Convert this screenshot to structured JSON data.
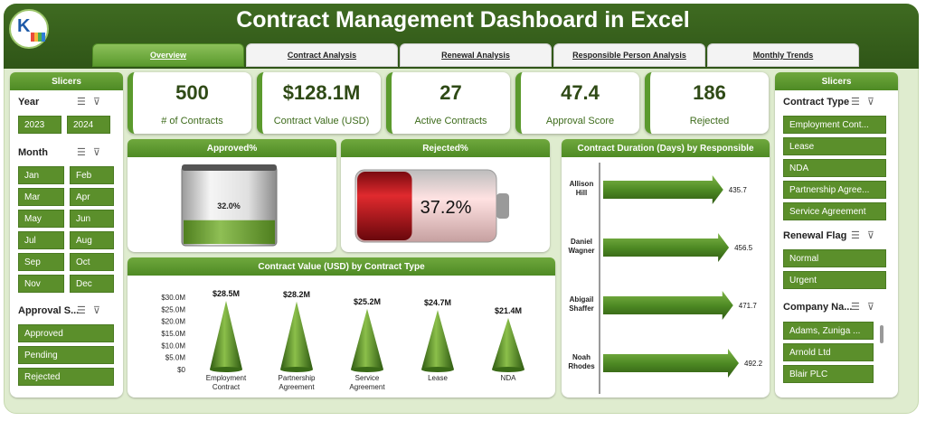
{
  "app": {
    "title": "Contract Management Dashboard in Excel"
  },
  "tabs": [
    {
      "label": "Overview",
      "active": true
    },
    {
      "label": "Contract Analysis"
    },
    {
      "label": "Renewal Analysis"
    },
    {
      "label": "Responsible Person Analysis"
    },
    {
      "label": "Monthly Trends"
    }
  ],
  "left_slicers": {
    "header": "Slicers",
    "year": {
      "title": "Year",
      "options": [
        "2023",
        "2024"
      ]
    },
    "month": {
      "title": "Month",
      "options": [
        "Jan",
        "Feb",
        "Mar",
        "Apr",
        "May",
        "Jun",
        "Jul",
        "Aug",
        "Sep",
        "Oct",
        "Nov",
        "Dec"
      ]
    },
    "approval": {
      "title": "Approval S...",
      "options": [
        "Approved",
        "Pending",
        "Rejected"
      ]
    }
  },
  "right_slicers": {
    "header": "Slicers",
    "contract_type": {
      "title": "Contract Type",
      "options": [
        "Employment Cont...",
        "Lease",
        "NDA",
        "Partnership Agree...",
        "Service Agreement"
      ]
    },
    "renewal_flag": {
      "title": "Renewal Flag",
      "options": [
        "Normal",
        "Urgent"
      ]
    },
    "company": {
      "title": "Company Na...",
      "options": [
        "Adams, Zuniga ...",
        "Arnold Ltd",
        "Blair PLC"
      ]
    }
  },
  "kpis": [
    {
      "value": "500",
      "label": "# of Contracts"
    },
    {
      "value": "$128.1M",
      "label": "Contract Value (USD)"
    },
    {
      "value": "27",
      "label": "Active Contracts"
    },
    {
      "value": "47.4",
      "label": "Approval Score"
    },
    {
      "value": "186",
      "label": "Rejected"
    }
  ],
  "approved_panel": {
    "title": "Approved%",
    "value_label": "32.0%",
    "fraction": 0.32
  },
  "rejected_panel": {
    "title": "Rejected%",
    "value_label": "37.2%",
    "fraction": 0.372
  },
  "colors": {
    "header": "#2f5517",
    "accent": "#5b9a2d",
    "slicer": "#5b8f2b",
    "rejected": "#c0141c"
  },
  "chart_data": [
    {
      "type": "bar",
      "title": "Contract Value (USD) by Contract Type",
      "categories": [
        "Employment Contract",
        "Partnership Agreement",
        "Service Agreement",
        "Lease",
        "NDA"
      ],
      "values": [
        28.5,
        28.2,
        25.2,
        24.7,
        21.4
      ],
      "data_labels": [
        "$28.5M",
        "$28.2M",
        "$25.2M",
        "$24.7M",
        "$21.4M"
      ],
      "y_ticks": [
        "$0",
        "$5.0M",
        "$10.0M",
        "$15.0M",
        "$20.0M",
        "$25.0M",
        "$30.0M"
      ],
      "ylim": [
        0,
        30
      ]
    },
    {
      "type": "bar",
      "orientation": "horizontal",
      "title": "Contract Duration (Days) by Responsible",
      "categories": [
        "Allison Hill",
        "Daniel Wagner",
        "Abigail Shaffer",
        "Noah Rhodes"
      ],
      "values": [
        435.7,
        456.5,
        471.7,
        492.2
      ],
      "data_labels": [
        "435.7",
        "456.5",
        "471.7",
        "492.2"
      ]
    }
  ]
}
